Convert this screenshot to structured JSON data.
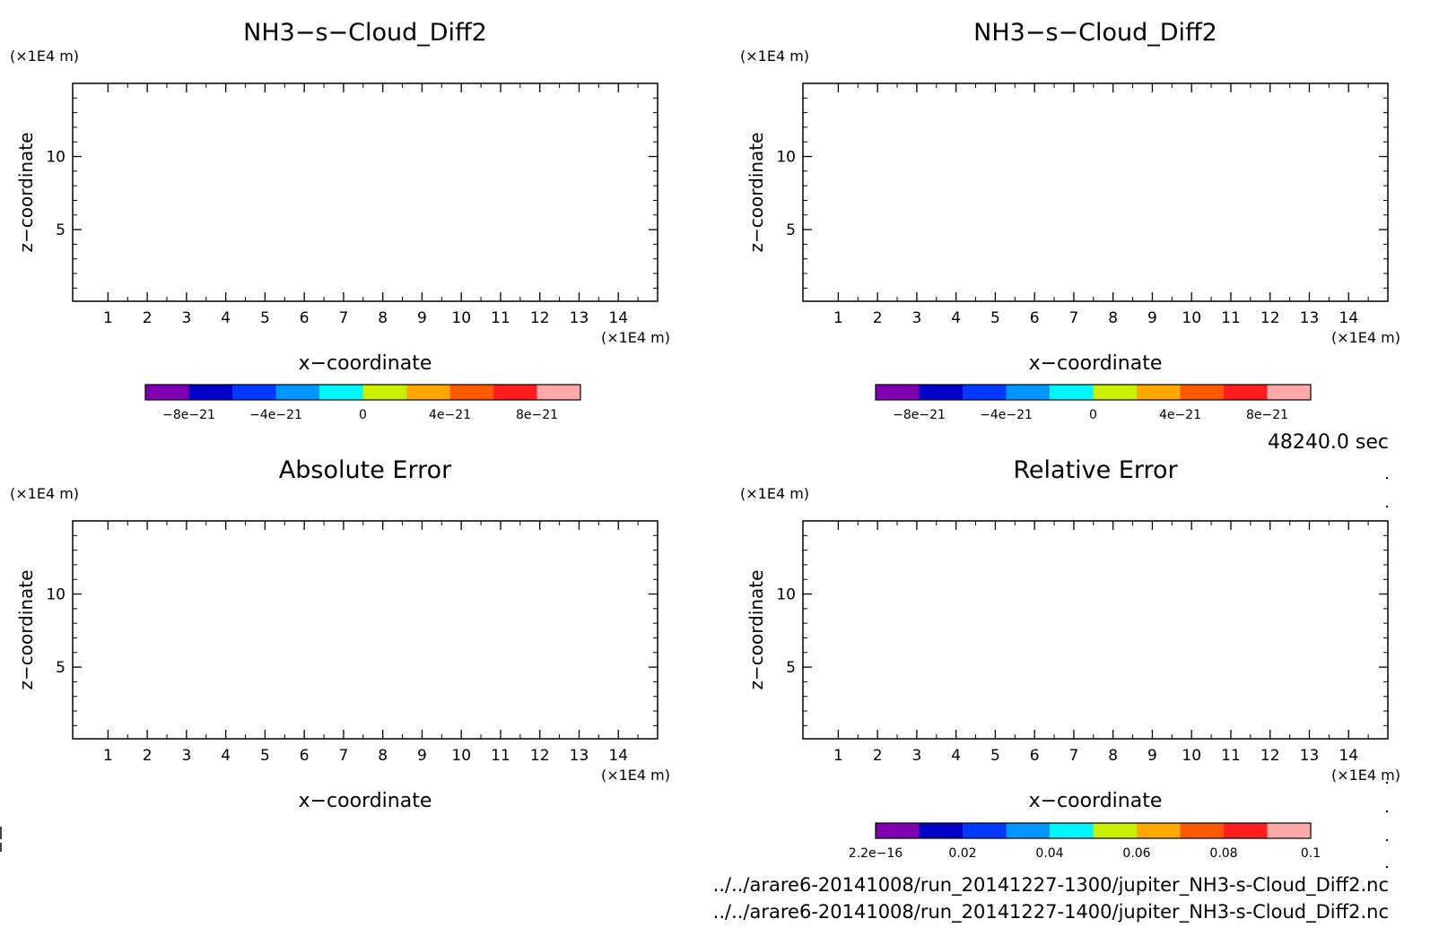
{
  "footer": {
    "time_label": "48240.0 sec",
    "file_a": "../../arare6-20141008/run_20141227-1300/jupiter_NH3-s-Cloud_Diff2.nc",
    "file_b": "../../arare6-20141008/run_20141227-1400/jupiter_NH3-s-Cloud_Diff2.nc"
  },
  "chart_data": [
    {
      "type": "heatmap",
      "title": "NH3−s−Cloud_Diff2",
      "xlabel": "x−coordinate",
      "ylabel": "z−coordinate",
      "x_unit": "(×1E4 m)",
      "y_unit": "(×1E4 m)",
      "xlim": [
        0.1,
        15
      ],
      "ylim": [
        0.1,
        15
      ],
      "x_ticks": [
        1,
        2,
        3,
        4,
        5,
        6,
        7,
        8,
        9,
        10,
        11,
        12,
        13,
        14
      ],
      "y_ticks": [
        5,
        10
      ],
      "values": [],
      "colorbar": {
        "colors": [
          "#7f00b0",
          "#0000c8",
          "#0038ff",
          "#0096ff",
          "#00f5ff",
          "#c8f000",
          "#ffa800",
          "#ff5a00",
          "#ff1e1e",
          "#ffa8a8"
        ],
        "tick_labels": [
          "−8e−21",
          "−4e−21",
          "0",
          "4e−21",
          "8e−21"
        ]
      }
    },
    {
      "type": "heatmap",
      "title": "NH3−s−Cloud_Diff2",
      "xlabel": "x−coordinate",
      "ylabel": "z−coordinate",
      "x_unit": "(×1E4 m)",
      "y_unit": "(×1E4 m)",
      "xlim": [
        0.1,
        15
      ],
      "ylim": [
        0.1,
        15
      ],
      "x_ticks": [
        1,
        2,
        3,
        4,
        5,
        6,
        7,
        8,
        9,
        10,
        11,
        12,
        13,
        14
      ],
      "y_ticks": [
        5,
        10
      ],
      "values": [],
      "colorbar": {
        "colors": [
          "#7f00b0",
          "#0000c8",
          "#0038ff",
          "#0096ff",
          "#00f5ff",
          "#c8f000",
          "#ffa800",
          "#ff5a00",
          "#ff1e1e",
          "#ffa8a8"
        ],
        "tick_labels": [
          "−8e−21",
          "−4e−21",
          "0",
          "4e−21",
          "8e−21"
        ]
      }
    },
    {
      "type": "heatmap",
      "title": "Absolute Error",
      "xlabel": "x−coordinate",
      "ylabel": "z−coordinate",
      "x_unit": "(×1E4 m)",
      "y_unit": "(×1E4 m)",
      "xlim": [
        0.1,
        15
      ],
      "ylim": [
        0.1,
        15
      ],
      "x_ticks": [
        1,
        2,
        3,
        4,
        5,
        6,
        7,
        8,
        9,
        10,
        11,
        12,
        13,
        14
      ],
      "y_ticks": [
        5,
        10
      ],
      "values": []
    },
    {
      "type": "heatmap",
      "title": "Relative Error",
      "xlabel": "x−coordinate",
      "ylabel": "z−coordinate",
      "x_unit": "(×1E4 m)",
      "y_unit": "(×1E4 m)",
      "xlim": [
        0.1,
        15
      ],
      "ylim": [
        0.1,
        15
      ],
      "x_ticks": [
        1,
        2,
        3,
        4,
        5,
        6,
        7,
        8,
        9,
        10,
        11,
        12,
        13,
        14
      ],
      "y_ticks": [
        5,
        10
      ],
      "values": [],
      "colorbar": {
        "colors": [
          "#7f00b0",
          "#0000c8",
          "#0038ff",
          "#0096ff",
          "#00f5ff",
          "#c8f000",
          "#ffa800",
          "#ff5a00",
          "#ff1e1e",
          "#ffa8a8"
        ],
        "tick_labels": [
          "2.2e−16",
          "0.02",
          "0.04",
          "0.06",
          "0.08",
          "0.1"
        ],
        "ticks_at_edges": true
      }
    }
  ]
}
